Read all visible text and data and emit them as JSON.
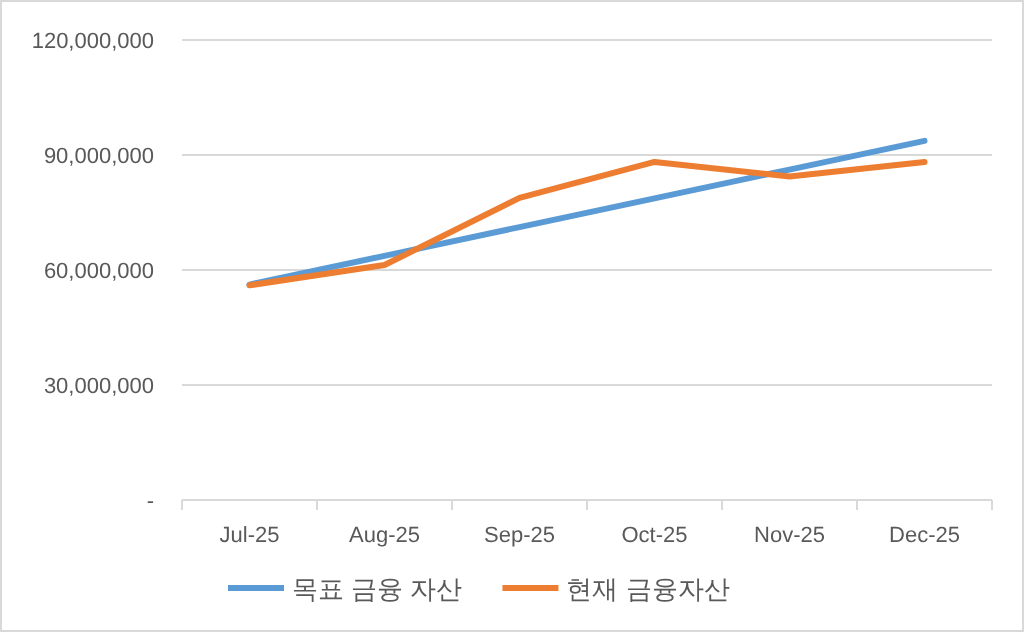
{
  "chart_data": {
    "type": "line",
    "categories": [
      "Jul-25",
      "Aug-25",
      "Sep-25",
      "Oct-25",
      "Nov-25",
      "Dec-25"
    ],
    "series": [
      {
        "name": "목표 금융 자산",
        "color": "#5b9bd5",
        "values": [
          56200000,
          63700000,
          71200000,
          78700000,
          86200000,
          93700000
        ]
      },
      {
        "name": "현재 금융자산",
        "color": "#ed7d31",
        "values": [
          56000000,
          61300000,
          78800000,
          88200000,
          84400000,
          88200000
        ]
      }
    ],
    "ylim": [
      0,
      120000000
    ],
    "yticks": [
      {
        "value": 0,
        "label": "-"
      },
      {
        "value": 30000000,
        "label": "30,000,000"
      },
      {
        "value": 60000000,
        "label": "60,000,000"
      },
      {
        "value": 90000000,
        "label": "90,000,000"
      },
      {
        "value": 120000000,
        "label": "120,000,000"
      }
    ],
    "grid": "y",
    "legend": "bottom",
    "marker": "none",
    "line_style": "solid"
  }
}
